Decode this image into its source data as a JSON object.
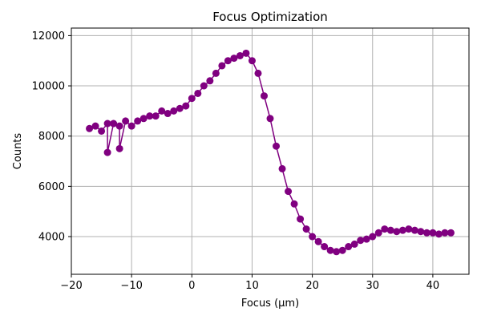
{
  "chart_data": {
    "type": "scatter",
    "title": "Focus Optimization",
    "xlabel": "Focus (µm)",
    "ylabel": "Counts",
    "xlim": [
      -20,
      46
    ],
    "ylim": [
      2500,
      12300
    ],
    "xticks": [
      -20,
      -10,
      0,
      10,
      20,
      30,
      40
    ],
    "xtick_labels": [
      "−20",
      "−10",
      "0",
      "10",
      "20",
      "30",
      "40"
    ],
    "yticks": [
      4000,
      6000,
      8000,
      10000,
      12000
    ],
    "ytick_labels": [
      "4000",
      "6000",
      "8000",
      "10000",
      "12000"
    ],
    "grid": true,
    "colors": {
      "series": "#800080",
      "grid": "#b0b0b0"
    },
    "series": [
      {
        "x": [
          -17,
          -16,
          -15,
          -14,
          -14,
          -13,
          -12,
          -12,
          -11,
          -10,
          -9,
          -8,
          -7,
          -6,
          -5,
          -4,
          -3,
          -2,
          -1,
          0,
          1,
          2,
          3,
          4,
          5,
          6,
          7,
          8,
          9,
          10,
          11,
          12,
          13,
          14,
          15,
          16,
          17,
          18,
          19,
          20,
          21,
          22,
          23,
          24,
          25,
          26,
          27,
          28,
          29,
          30,
          31,
          32,
          33,
          34,
          35,
          36,
          37,
          38,
          39,
          40,
          41,
          42,
          43
        ],
        "y": [
          8300,
          8400,
          8200,
          8500,
          7350,
          8500,
          8400,
          7500,
          8600,
          8400,
          8600,
          8700,
          8800,
          8800,
          9000,
          8900,
          9000,
          9100,
          9200,
          9500,
          9700,
          10000,
          10200,
          10500,
          10800,
          11000,
          11100,
          11200,
          11300,
          11000,
          10500,
          9600,
          8700,
          7600,
          6700,
          5800,
          5300,
          4700,
          4300,
          4000,
          3800,
          3600,
          3450,
          3400,
          3450,
          3600,
          3700,
          3850,
          3900,
          4000,
          4150,
          4300,
          4250,
          4200,
          4250,
          4300,
          4250,
          4200,
          4150,
          4150,
          4100,
          4150,
          4150
        ]
      }
    ]
  }
}
